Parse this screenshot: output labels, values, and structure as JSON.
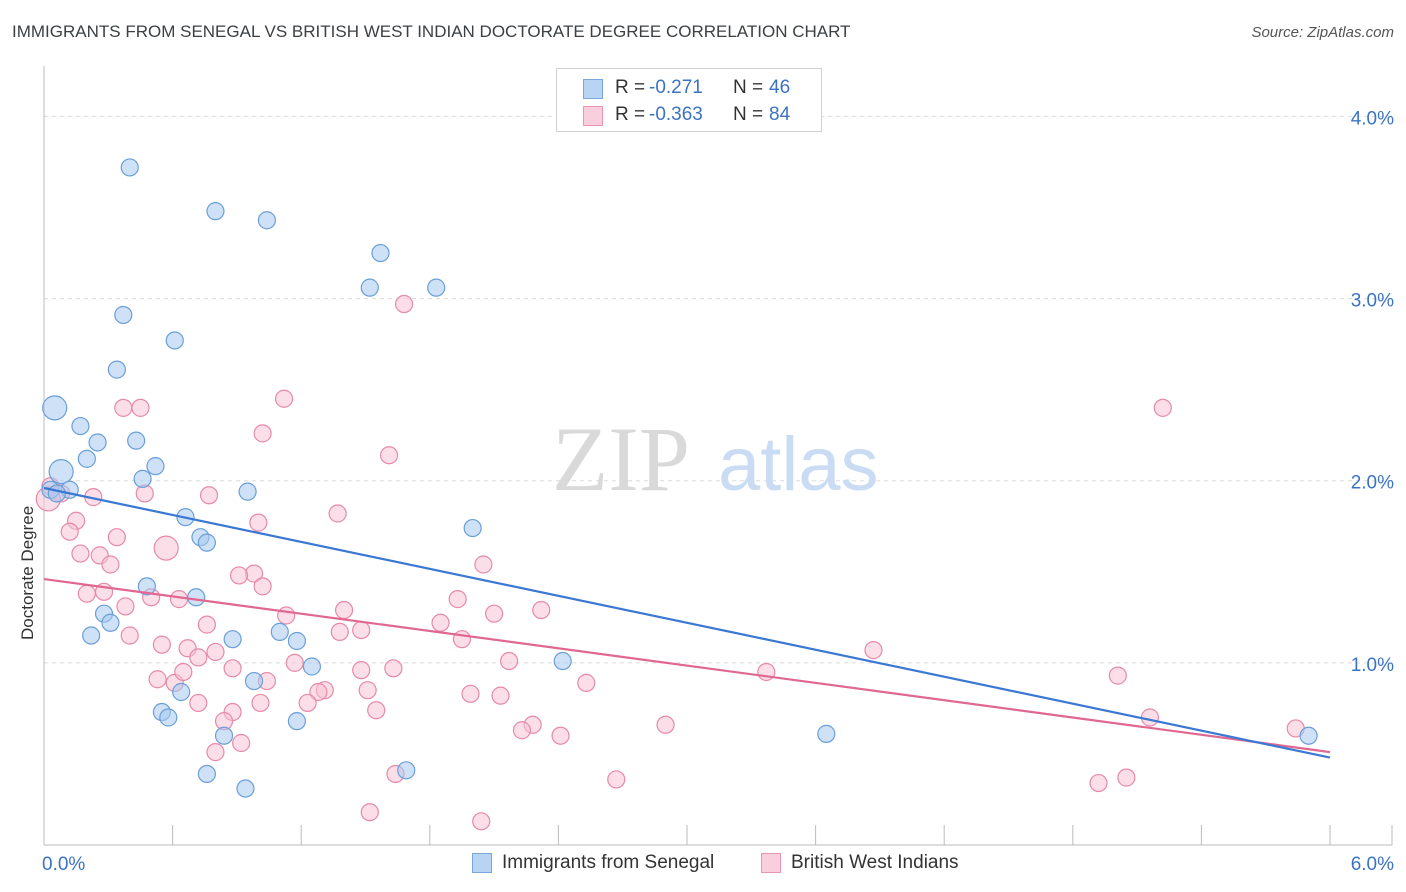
{
  "title": "IMMIGRANTS FROM SENEGAL VS BRITISH WEST INDIAN DOCTORATE DEGREE CORRELATION CHART",
  "source": "Source: ZipAtlas.com",
  "watermark": {
    "zip": "ZIP",
    "atlas": "atlas"
  },
  "legend": {
    "series1": {
      "r_label": "R =",
      "r_value": "-0.271",
      "n_label": "N =",
      "n_value": "46"
    },
    "series2": {
      "r_label": "R =",
      "r_value": "-0.363",
      "n_label": "N =",
      "n_value": "84"
    }
  },
  "bottom_legend": {
    "series1": "Immigrants from Senegal",
    "series2": "British West Indians"
  },
  "colors": {
    "series1_fill": "#a8c8f0",
    "series1_stroke": "#6a9fd8",
    "series1_line": "#3a78d4",
    "series2_fill": "#f7c3d4",
    "series2_stroke": "#e68aa8",
    "series2_line": "#e06890",
    "axis_text": "#3b73c4",
    "grid": "#dcdcdc"
  },
  "chart_data": {
    "type": "scatter",
    "title": "IMMIGRANTS FROM SENEGAL VS BRITISH WEST INDIAN DOCTORATE DEGREE CORRELATION CHART",
    "xlabel": "",
    "ylabel": "Doctorate Degree",
    "xlim": [
      0,
      6
    ],
    "ylim": [
      0,
      4.2
    ],
    "x_tick_labels": [
      "0.0%",
      "6.0%"
    ],
    "y_ticks": [
      1,
      2,
      3,
      4
    ],
    "y_tick_labels": [
      "1.0%",
      "2.0%",
      "3.0%",
      "4.0%"
    ],
    "grid": true,
    "legend_position": "top-center",
    "series": [
      {
        "name": "Immigrants from Senegal",
        "r": -0.271,
        "n": 46,
        "trend": {
          "x": [
            0,
            6
          ],
          "y": [
            1.96,
            0.48
          ]
        },
        "points": [
          [
            0.4,
            3.72
          ],
          [
            0.8,
            3.48
          ],
          [
            1.04,
            3.43
          ],
          [
            1.57,
            3.25
          ],
          [
            1.52,
            3.06
          ],
          [
            1.83,
            3.06
          ],
          [
            0.37,
            2.91
          ],
          [
            0.61,
            2.77
          ],
          [
            0.34,
            2.61
          ],
          [
            0.05,
            2.4
          ],
          [
            0.17,
            2.3
          ],
          [
            0.25,
            2.21
          ],
          [
            0.43,
            2.22
          ],
          [
            0.2,
            2.12
          ],
          [
            0.52,
            2.08
          ],
          [
            0.08,
            2.05
          ],
          [
            0.46,
            2.01
          ],
          [
            0.12,
            1.95
          ],
          [
            0.03,
            1.95
          ],
          [
            0.95,
            1.94
          ],
          [
            0.66,
            1.8
          ],
          [
            2.0,
            1.74
          ],
          [
            0.73,
            1.69
          ],
          [
            0.76,
            1.66
          ],
          [
            0.48,
            1.42
          ],
          [
            0.71,
            1.36
          ],
          [
            0.28,
            1.27
          ],
          [
            0.31,
            1.22
          ],
          [
            0.22,
            1.15
          ],
          [
            0.88,
            1.13
          ],
          [
            1.1,
            1.17
          ],
          [
            1.18,
            1.12
          ],
          [
            2.42,
            1.01
          ],
          [
            1.25,
            0.98
          ],
          [
            0.98,
            0.9
          ],
          [
            0.64,
            0.84
          ],
          [
            0.55,
            0.73
          ],
          [
            0.58,
            0.7
          ],
          [
            1.18,
            0.68
          ],
          [
            0.84,
            0.6
          ],
          [
            3.65,
            0.61
          ],
          [
            5.9,
            0.6
          ],
          [
            0.76,
            0.39
          ],
          [
            1.69,
            0.41
          ],
          [
            0.94,
            0.31
          ],
          [
            0.06,
            1.93
          ]
        ],
        "large_points": [
          [
            0.05,
            2.4
          ],
          [
            0.08,
            2.05
          ]
        ]
      },
      {
        "name": "British West Indians",
        "r": -0.363,
        "n": 84,
        "trend": {
          "x": [
            0,
            6
          ],
          "y": [
            1.46,
            0.51
          ]
        },
        "points": [
          [
            1.68,
            2.97
          ],
          [
            1.12,
            2.45
          ],
          [
            0.37,
            2.4
          ],
          [
            0.45,
            2.4
          ],
          [
            1.02,
            2.26
          ],
          [
            1.61,
            2.14
          ],
          [
            5.22,
            2.4
          ],
          [
            0.03,
            1.97
          ],
          [
            0.08,
            1.93
          ],
          [
            0.02,
            1.9
          ],
          [
            0.47,
            1.93
          ],
          [
            0.77,
            1.92
          ],
          [
            0.23,
            1.91
          ],
          [
            1.37,
            1.82
          ],
          [
            0.15,
            1.78
          ],
          [
            1.0,
            1.77
          ],
          [
            0.12,
            1.72
          ],
          [
            0.34,
            1.69
          ],
          [
            0.57,
            1.63
          ],
          [
            0.17,
            1.6
          ],
          [
            0.26,
            1.59
          ],
          [
            2.05,
            1.54
          ],
          [
            0.31,
            1.54
          ],
          [
            0.98,
            1.49
          ],
          [
            0.91,
            1.48
          ],
          [
            1.02,
            1.42
          ],
          [
            0.2,
            1.38
          ],
          [
            0.28,
            1.39
          ],
          [
            0.5,
            1.36
          ],
          [
            0.63,
            1.35
          ],
          [
            1.93,
            1.35
          ],
          [
            0.38,
            1.31
          ],
          [
            1.4,
            1.29
          ],
          [
            2.32,
            1.29
          ],
          [
            1.13,
            1.26
          ],
          [
            2.1,
            1.27
          ],
          [
            0.76,
            1.21
          ],
          [
            1.85,
            1.22
          ],
          [
            1.48,
            1.18
          ],
          [
            1.38,
            1.17
          ],
          [
            0.4,
            1.15
          ],
          [
            1.95,
            1.13
          ],
          [
            0.55,
            1.1
          ],
          [
            0.67,
            1.08
          ],
          [
            0.8,
            1.06
          ],
          [
            0.72,
            1.03
          ],
          [
            3.87,
            1.07
          ],
          [
            1.17,
            1.0
          ],
          [
            2.17,
            1.01
          ],
          [
            1.48,
            0.96
          ],
          [
            1.63,
            0.97
          ],
          [
            0.88,
            0.97
          ],
          [
            3.37,
            0.95
          ],
          [
            5.01,
            0.93
          ],
          [
            0.53,
            0.91
          ],
          [
            0.61,
            0.89
          ],
          [
            1.04,
            0.9
          ],
          [
            2.53,
            0.89
          ],
          [
            1.31,
            0.85
          ],
          [
            1.28,
            0.84
          ],
          [
            1.99,
            0.83
          ],
          [
            2.13,
            0.82
          ],
          [
            0.72,
            0.78
          ],
          [
            1.01,
            0.78
          ],
          [
            1.23,
            0.78
          ],
          [
            1.55,
            0.74
          ],
          [
            0.88,
            0.73
          ],
          [
            0.84,
            0.68
          ],
          [
            2.9,
            0.66
          ],
          [
            2.28,
            0.66
          ],
          [
            2.23,
            0.63
          ],
          [
            5.16,
            0.7
          ],
          [
            5.84,
            0.64
          ],
          [
            2.41,
            0.6
          ],
          [
            0.92,
            0.56
          ],
          [
            0.8,
            0.51
          ],
          [
            1.64,
            0.39
          ],
          [
            2.67,
            0.36
          ],
          [
            5.05,
            0.37
          ],
          [
            4.92,
            0.34
          ],
          [
            1.52,
            0.18
          ],
          [
            2.04,
            0.13
          ],
          [
            0.65,
            0.95
          ],
          [
            1.51,
            0.85
          ]
        ],
        "large_points": [
          [
            0.02,
            1.9
          ],
          [
            0.57,
            1.63
          ]
        ]
      }
    ]
  }
}
